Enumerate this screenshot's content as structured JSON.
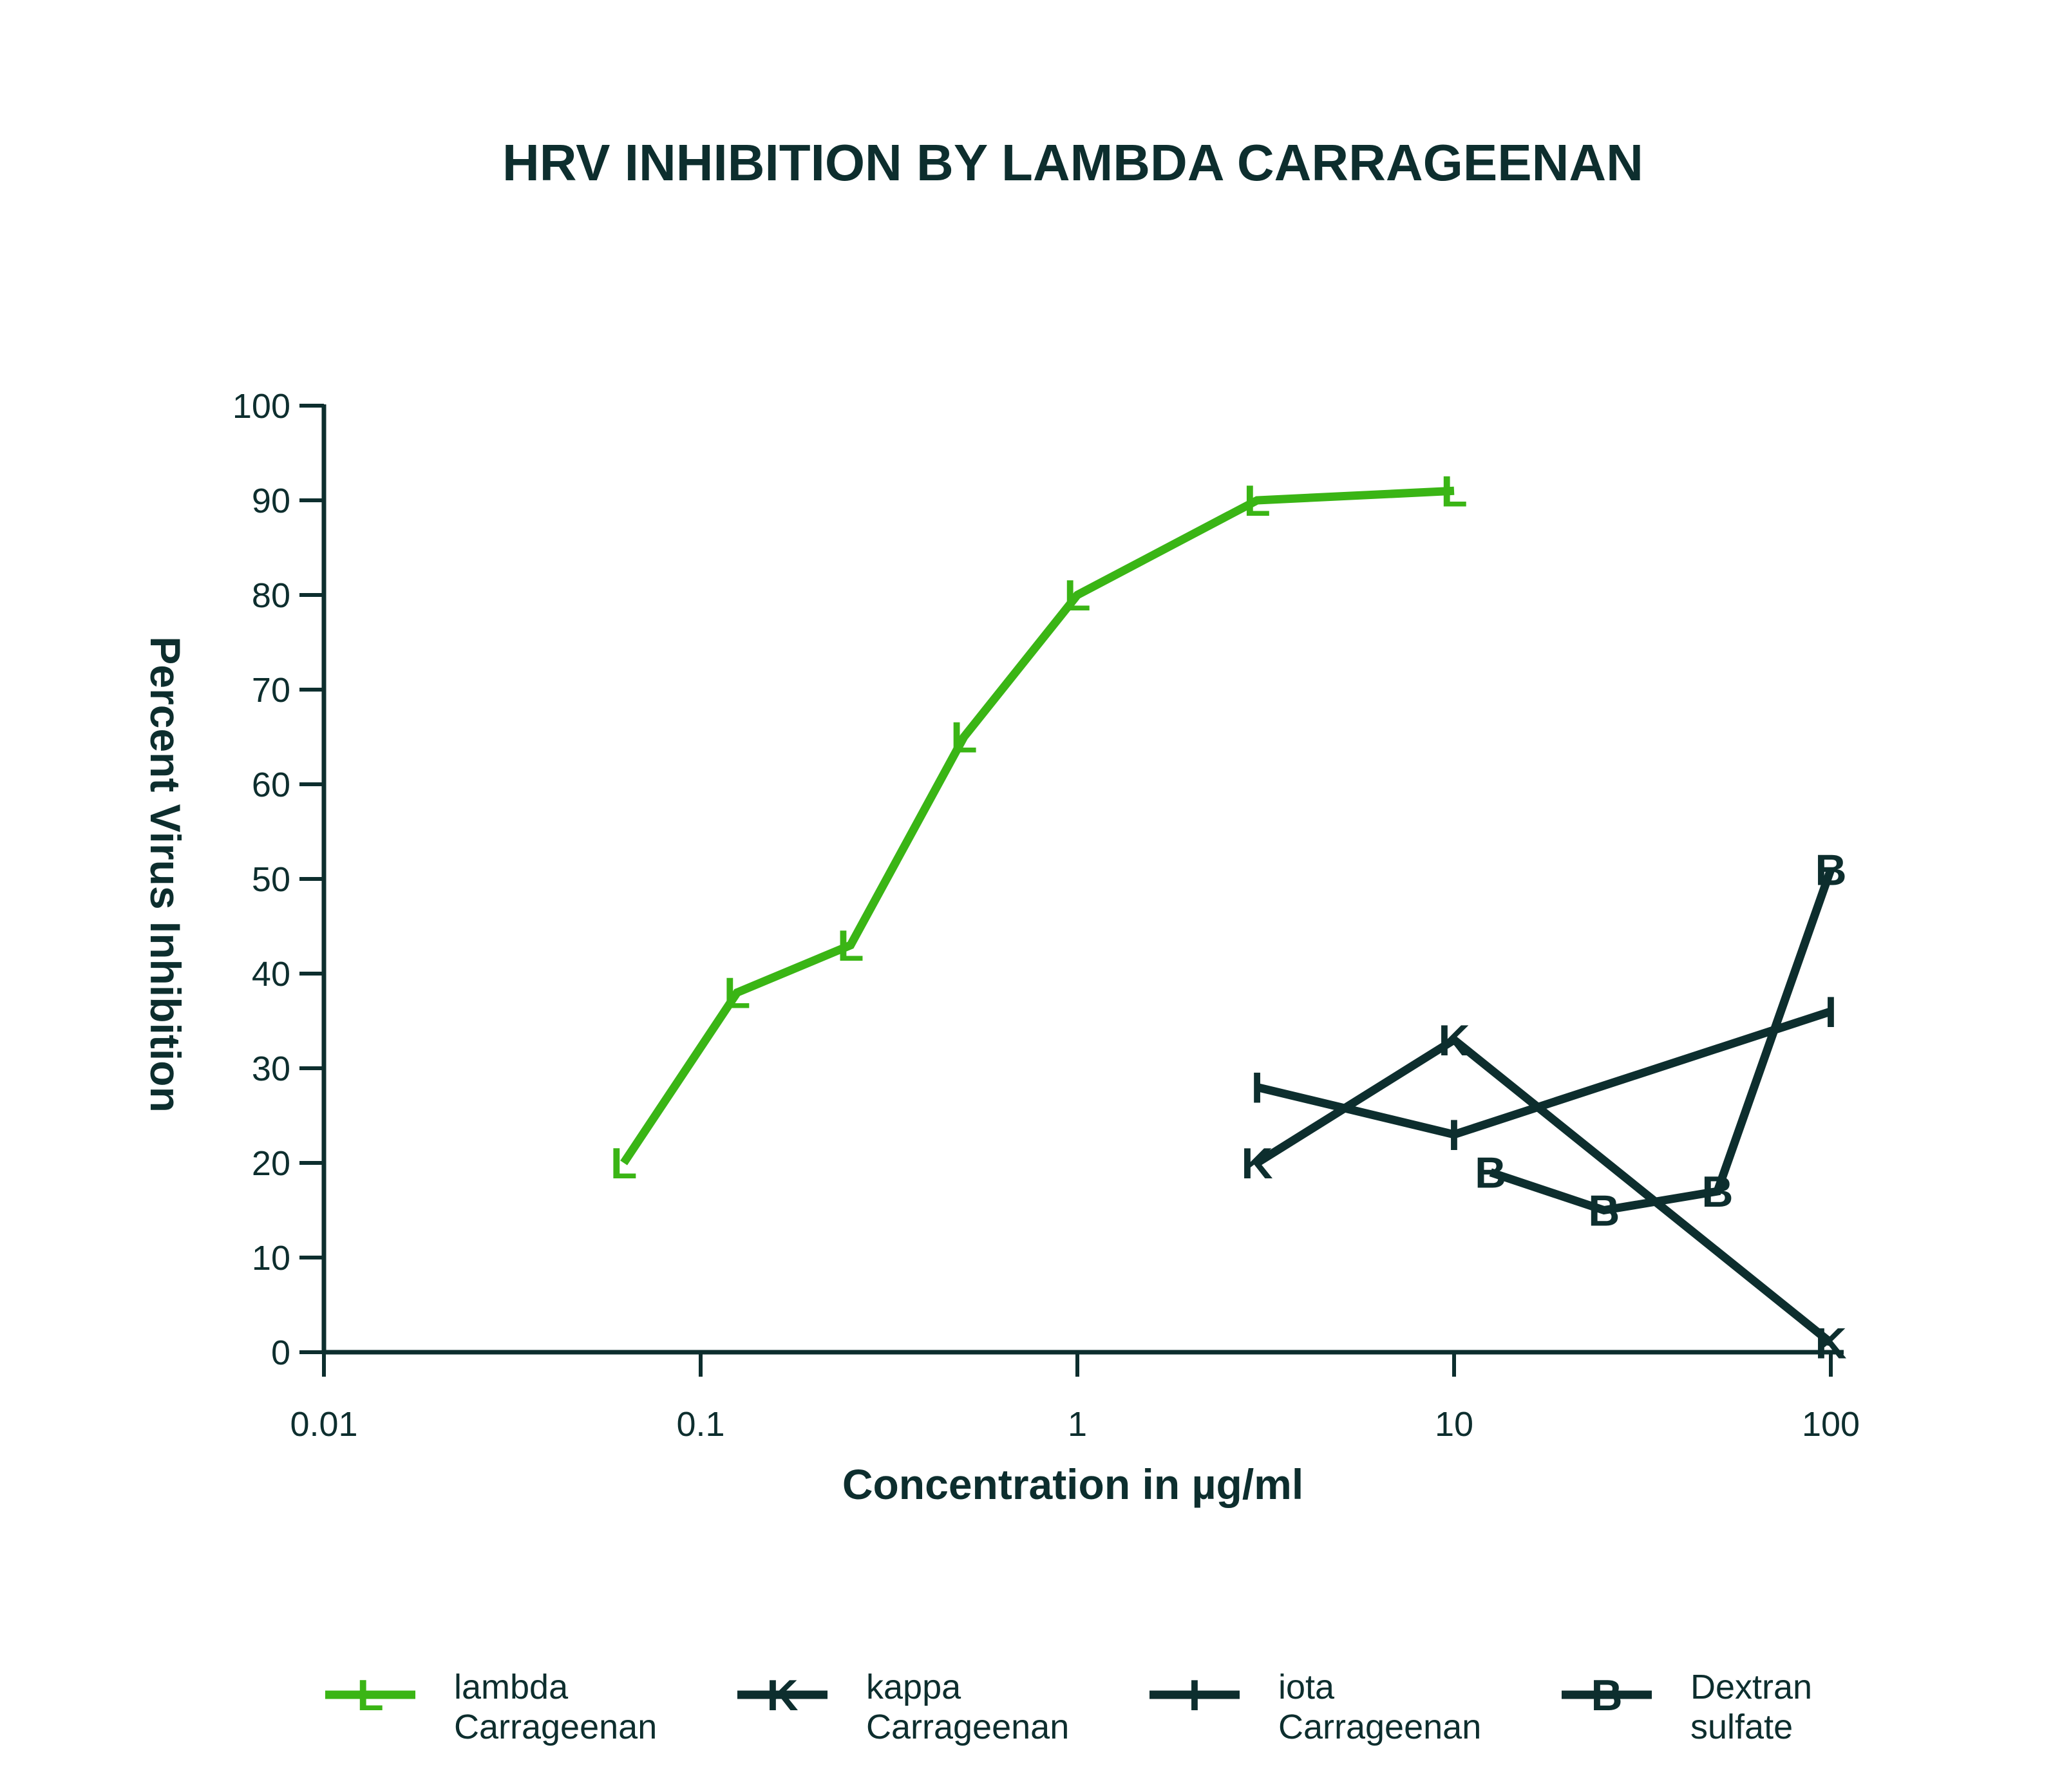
{
  "chart_data": {
    "type": "line",
    "title": "HRV INHIBITION BY LAMBDA CARRAGEENAN",
    "xlabel": "Concentration in µg/ml",
    "ylabel": "Percent Virus Inhibition",
    "xscale": "log",
    "xlim": [
      0.01,
      100
    ],
    "ylim": [
      0,
      100
    ],
    "xticks": [
      0.01,
      0.1,
      1,
      10,
      100
    ],
    "xtick_labels": [
      "0.01",
      "0.1",
      "1",
      "10",
      "100"
    ],
    "yticks": [
      0,
      10,
      20,
      30,
      40,
      50,
      60,
      70,
      80,
      90,
      100
    ],
    "ytick_labels": [
      "0",
      "10",
      "20",
      "30",
      "40",
      "50",
      "60",
      "70",
      "80",
      "90",
      "100"
    ],
    "legend_position": "bottom",
    "series": [
      {
        "name": "lambda Carrageenan",
        "legend_lines": [
          "lambda",
          "Carrageenan"
        ],
        "marker": "L",
        "color": "#3ab515",
        "x": [
          0.0625,
          0.125,
          0.25,
          0.5,
          1,
          3,
          10
        ],
        "y": [
          20,
          38,
          43,
          65,
          80,
          90,
          91
        ]
      },
      {
        "name": "kappa Carrageenan",
        "legend_lines": [
          "kappa",
          "Carrageenan"
        ],
        "marker": "K",
        "color": "#0d2e2e",
        "x": [
          3,
          10,
          100
        ],
        "y": [
          20,
          33,
          1
        ]
      },
      {
        "name": "iota Carrageenan",
        "legend_lines": [
          "iota",
          "Carrageenan"
        ],
        "marker": "I",
        "color": "#0d2e2e",
        "x": [
          3,
          10,
          100
        ],
        "y": [
          28,
          23,
          36
        ]
      },
      {
        "name": "Dextran sulfate",
        "legend_lines": [
          "Dextran",
          "sulfate"
        ],
        "marker": "B",
        "color": "#0d2e2e",
        "x": [
          12.5,
          25,
          50,
          100
        ],
        "y": [
          19,
          15,
          17,
          51
        ]
      }
    ]
  }
}
